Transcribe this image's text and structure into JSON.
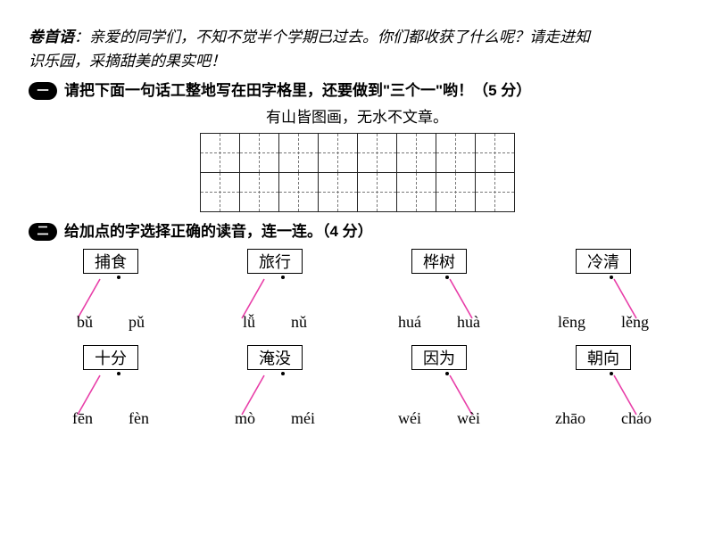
{
  "preamble": {
    "label": "卷首语",
    "line1": "：亲爱的同学们，不知不觉半个学期已过去。你们都收获了什么呢？请走进知",
    "line2": "识乐园，采摘甜美的果实吧！"
  },
  "q1": {
    "badge": "一",
    "title": "请把下面一句话工整地写在田字格里，还要做到\"三个一\"哟！（5 分）",
    "sentence": "有山皆图画，无水不文章。",
    "grid": {
      "rows": 2,
      "cols": 8
    }
  },
  "q2": {
    "badge": "二",
    "title": "给加点的字选择正确的读音，连一连。（4 分）",
    "items": [
      [
        {
          "word_plain": "捕",
          "word_dot": "食",
          "left": "bǔ",
          "right": "pǔ",
          "connect": "left"
        },
        {
          "word_plain": "旅",
          "word_dot": "行",
          "left": "lǚ",
          "right": "nǔ",
          "connect": "left"
        },
        {
          "word_plain": "桦",
          "word_dot": "树",
          "left": "huá",
          "right": "huà",
          "connect": "right"
        },
        {
          "word_plain": "冷",
          "word_dot": "清",
          "left": "lēng",
          "right": "lěng",
          "connect": "right"
        }
      ],
      [
        {
          "word_plain": "十",
          "word_dot": "分",
          "left": "fēn",
          "right": "fèn",
          "connect": "left"
        },
        {
          "word_plain": "淹",
          "word_dot": "没",
          "left": "mò",
          "right": "méi",
          "connect": "left"
        },
        {
          "word_plain": "因",
          "word_dot": "为",
          "left": "wéi",
          "right": "wèi",
          "connect": "right"
        },
        {
          "word_plain": "朝",
          "word_dot": "向",
          "left": "zhāo",
          "right": "cháo",
          "connect": "right"
        }
      ]
    ],
    "line_color": "#e83ea8"
  }
}
